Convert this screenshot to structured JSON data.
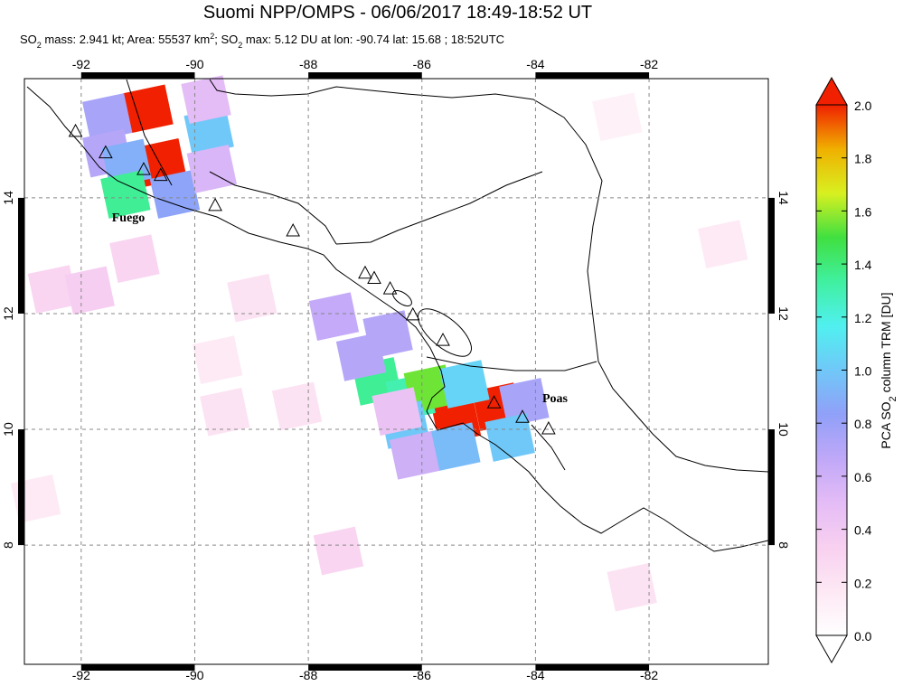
{
  "map": {
    "title": "Suomi NPP/OMPS - 06/06/2017 18:49-18:52 UT",
    "subtitle": [
      "SO",
      "2",
      " mass: 2.941 kt; Area: 55537 km",
      "2",
      "; SO",
      "2",
      " max: 5.12 DU at lon: -90.74 lat: 15.68 ; 18:52UTC"
    ],
    "lonlim": [
      -93,
      -79.9
    ],
    "latlim": [
      5.94,
      16.06
    ],
    "lonticks": [
      -92,
      -90,
      -88,
      -86,
      -84,
      -82
    ],
    "latticks": [
      8,
      10,
      12,
      14
    ],
    "grid": true,
    "cells": [
      {
        "lon": -90.82,
        "lat": 15.54,
        "value": 5.12
      },
      {
        "lon": -90.58,
        "lat": 14.61,
        "value": 3.0
      },
      {
        "lon": -91.54,
        "lat": 15.39,
        "value": 0.75
      },
      {
        "lon": -91.54,
        "lat": 14.77,
        "value": 0.7
      },
      {
        "lon": -89.75,
        "lat": 15.15,
        "value": 1.0
      },
      {
        "lon": -89.8,
        "lat": 15.7,
        "value": 0.5
      },
      {
        "lon": -91.2,
        "lat": 14.6,
        "value": 0.9
      },
      {
        "lon": -91.22,
        "lat": 14.06,
        "value": 1.35
      },
      {
        "lon": -90.35,
        "lat": 14.06,
        "value": 0.85
      },
      {
        "lon": -89.7,
        "lat": 14.5,
        "value": 0.55
      },
      {
        "lon": -85.4,
        "lat": 10.16,
        "value": 2.5
      },
      {
        "lon": -84.68,
        "lat": 10.39,
        "value": 2.2
      },
      {
        "lon": -84.2,
        "lat": 10.47,
        "value": 0.75
      },
      {
        "lon": -86.79,
        "lat": 10.83,
        "value": 1.35
      },
      {
        "lon": -86.2,
        "lat": 10.55,
        "value": 1.3
      },
      {
        "lon": -85.88,
        "lat": 10.7,
        "value": 1.55
      },
      {
        "lon": -85.25,
        "lat": 10.78,
        "value": 1.05
      },
      {
        "lon": -86.3,
        "lat": 10.08,
        "value": 1.0
      },
      {
        "lon": -85.41,
        "lat": 9.7,
        "value": 0.95
      },
      {
        "lon": -84.45,
        "lat": 9.86,
        "value": 1.0
      },
      {
        "lon": -87.07,
        "lat": 11.25,
        "value": 0.7
      },
      {
        "lon": -87.55,
        "lat": 11.95,
        "value": 0.65
      },
      {
        "lon": -86.6,
        "lat": 11.64,
        "value": 0.7
      },
      {
        "lon": -86.13,
        "lat": 9.55,
        "value": 0.6
      },
      {
        "lon": -86.44,
        "lat": 10.31,
        "value": 0.45
      },
      {
        "lon": -92.5,
        "lat": 12.42,
        "value": 0.3
      },
      {
        "lon": -91.85,
        "lat": 12.4,
        "value": 0.35
      },
      {
        "lon": -91.06,
        "lat": 12.95,
        "value": 0.3
      },
      {
        "lon": -89.47,
        "lat": 10.3,
        "value": 0.2
      },
      {
        "lon": -87.47,
        "lat": 7.9,
        "value": 0.3
      },
      {
        "lon": -88.99,
        "lat": 12.27,
        "value": 0.2
      },
      {
        "lon": -82.3,
        "lat": 7.27,
        "value": 0.2
      },
      {
        "lon": -80.7,
        "lat": 13.2,
        "value": 0.15
      },
      {
        "lon": -82.56,
        "lat": 15.4,
        "value": 0.1
      },
      {
        "lon": -92.8,
        "lat": 8.8,
        "value": 0.15
      },
      {
        "lon": -88.2,
        "lat": 10.4,
        "value": 0.2
      },
      {
        "lon": -89.6,
        "lat": 11.2,
        "value": 0.15
      }
    ],
    "volcanoes": [
      {
        "lon": -92.1,
        "lat": 15.14
      },
      {
        "lon": -91.57,
        "lat": 14.77
      },
      {
        "lon": -90.9,
        "lat": 14.48
      },
      {
        "lon": -90.6,
        "lat": 14.38
      },
      {
        "lon": -89.64,
        "lat": 13.86
      },
      {
        "lon": -88.27,
        "lat": 13.42
      },
      {
        "lon": -87.0,
        "lat": 12.69
      },
      {
        "lon": -86.84,
        "lat": 12.6
      },
      {
        "lon": -86.56,
        "lat": 12.42
      },
      {
        "lon": -86.16,
        "lat": 11.97
      },
      {
        "lon": -85.63,
        "lat": 11.53
      },
      {
        "lon": -84.73,
        "lat": 10.45
      },
      {
        "lon": -84.23,
        "lat": 10.2
      },
      {
        "lon": -83.77,
        "lat": 10.0
      }
    ],
    "labels": [
      {
        "text": "Fuego",
        "lon": -91.46,
        "lat": 13.67
      },
      {
        "text": "Poas",
        "lon": -83.88,
        "lat": 10.55
      }
    ],
    "colorbar": {
      "label": [
        "PCA SO",
        "2",
        " column TRM [DU]"
      ],
      "range": [
        0,
        2
      ],
      "ticks": [
        {
          "value": 0,
          "label": "0.0"
        },
        0.2,
        0.4,
        0.6,
        0.8,
        {
          "value": 1,
          "label": "1.0"
        },
        1.2,
        1.4,
        1.6,
        1.8,
        {
          "value": 2,
          "label": "2.0"
        }
      ],
      "colormap": [
        "#ffffff",
        "#fde8f4",
        "#f8d0f0",
        "#e4bcf6",
        "#c0a8f8",
        "#90a0f8",
        "#70c8f8",
        "#50f0f0",
        "#40f0a0",
        "#40e040",
        "#d8f020",
        "#f0b000",
        "#f02000"
      ]
    }
  }
}
